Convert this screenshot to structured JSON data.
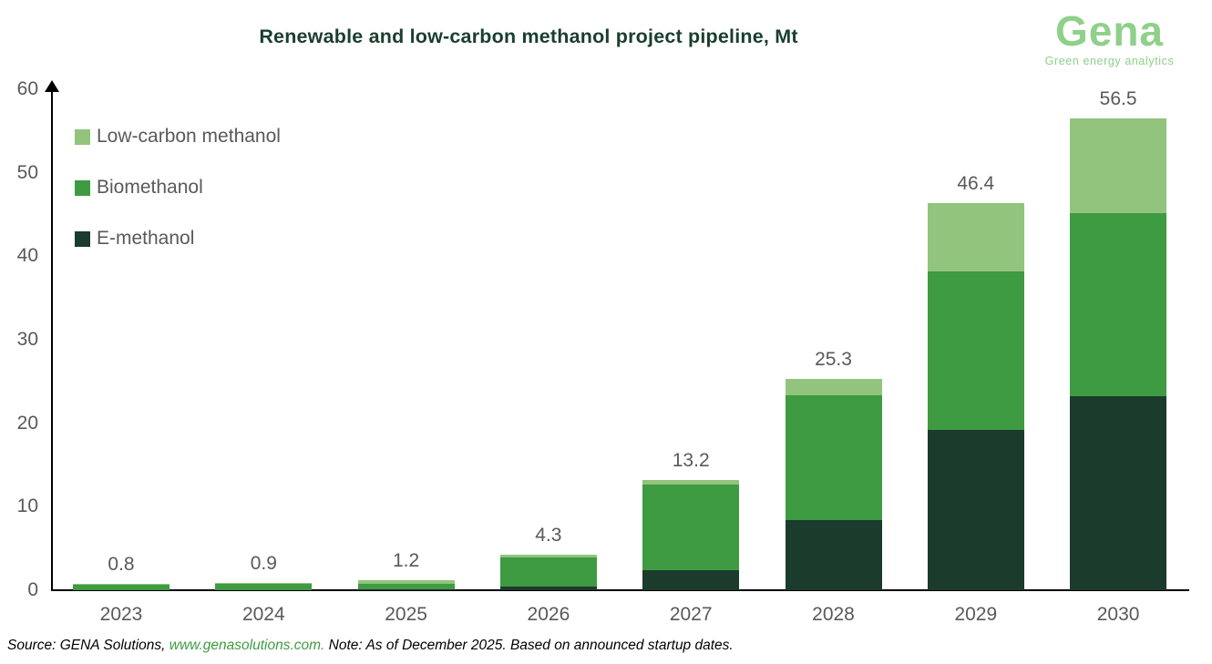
{
  "header": {
    "title": "Renewable and low-carbon methanol project pipeline, Mt",
    "logo": {
      "name": "Gena",
      "tagline": "Green energy analytics",
      "color": "#8FD08A"
    }
  },
  "chart_data": {
    "type": "bar",
    "stacked": true,
    "title": "Renewable and low-carbon methanol project pipeline, Mt",
    "xlabel": "",
    "ylabel": "",
    "unit": "Mt",
    "categories": [
      "2023",
      "2024",
      "2025",
      "2026",
      "2027",
      "2028",
      "2029",
      "2030"
    ],
    "series": [
      {
        "name": "E-methanol",
        "color": "#1B3B2C",
        "values": [
          0.0,
          0.0,
          0.1,
          0.4,
          2.4,
          8.4,
          19.2,
          23.2
        ]
      },
      {
        "name": "Biomethanol",
        "color": "#3E9B41",
        "values": [
          0.7,
          0.8,
          0.7,
          3.5,
          10.3,
          14.9,
          19.0,
          22.0
        ]
      },
      {
        "name": "Low-carbon methanol",
        "color": "#93C47D",
        "values": [
          0.1,
          0.1,
          0.4,
          0.4,
          0.5,
          2.0,
          8.2,
          11.3
        ]
      }
    ],
    "totals": [
      0.8,
      0.9,
      1.2,
      4.3,
      13.2,
      25.3,
      46.4,
      56.5
    ],
    "total_labels": [
      "0.8",
      "0.9",
      "1.2",
      "4.3",
      "13.2",
      "25.3",
      "46.4",
      "56.5"
    ],
    "ylim": [
      0,
      60
    ],
    "yticks": [
      0,
      10,
      20,
      30,
      40,
      50,
      60
    ],
    "grid": false,
    "legend_position": "top-left"
  },
  "legend": {
    "items": [
      {
        "label": "Low-carbon methanol",
        "color": "#93C47D"
      },
      {
        "label": "Biomethanol",
        "color": "#3E9B41"
      },
      {
        "label": "E-methanol",
        "color": "#1B3B2C"
      }
    ]
  },
  "footer": {
    "source_prefix": "Source: GENA Solutions, ",
    "link": "www.genasolutions.com.",
    "note": " Note: As of December 2025. Based on announced startup dates."
  },
  "colors": {
    "title_text": "#1A3E2F",
    "axis": "#000000",
    "tick_text": "#595959",
    "link_green": "#3E9B41",
    "background": "#FFFFFF"
  }
}
